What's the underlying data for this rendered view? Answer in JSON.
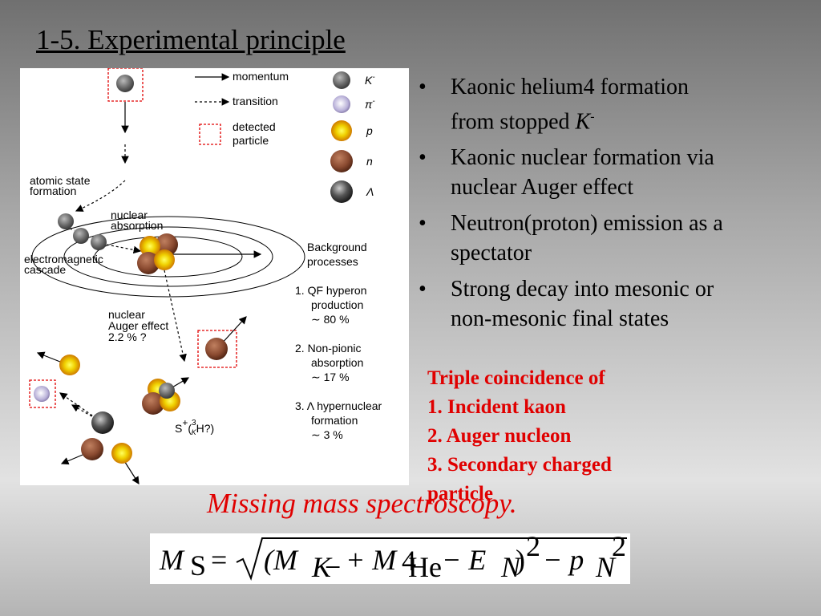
{
  "title": "1-5. Experimental principle",
  "bullets": [
    {
      "text": "Kaonic helium4 formation from stopped ",
      "symbol": "K",
      "superscript": "-"
    },
    {
      "text": "Kaonic nuclear formation via nuclear Auger effect"
    },
    {
      "text": "Neutron(proton) emission as a spectator"
    },
    {
      "text": "Strong decay into mesonic or non-mesonic final states"
    }
  ],
  "coincidence": [
    "Triple coincidence of",
    "1. Incident kaon",
    "2. Auger nucleon",
    "3. Secondary charged particle"
  ],
  "caption": "Missing mass spectroscopy.",
  "formula": [
    "M",
    "S",
    "=",
    "(M",
    "K",
    "−",
    "+ M",
    "4",
    "He",
    "− E",
    "N",
    ")",
    "2",
    "− p",
    "N",
    "2"
  ],
  "diagram": {
    "legend": {
      "momentum": "momentum",
      "transition": "transition",
      "detected": [
        "detected",
        "particle"
      ]
    },
    "particles": [
      {
        "symbol": "K",
        "superscript": "-"
      },
      {
        "symbol": "π",
        "superscript": "-"
      },
      {
        "symbol": "p"
      },
      {
        "symbol": "n"
      },
      {
        "symbol": "Λ"
      }
    ],
    "labels": {
      "atomic": [
        "atomic state",
        "formation"
      ],
      "absorption": [
        "nuclear",
        "absorption"
      ],
      "cascade": [
        "electromagnetic",
        "cascade"
      ],
      "auger": [
        "nuclear",
        "Auger effect",
        "2.2 % ?"
      ],
      "background": [
        "Background",
        "processes"
      ]
    },
    "processes": [
      [
        "1. QF hyperon",
        "production",
        "∼ 80 %"
      ],
      [
        "2. Non-pionic",
        "absorption",
        "∼ 17 %"
      ],
      [
        "3. Λ hypernuclear",
        "formation",
        "∼ 3 %"
      ]
    ],
    "state": [
      "S",
      "+",
      "(",
      "3",
      "K",
      "H?)"
    ]
  }
}
